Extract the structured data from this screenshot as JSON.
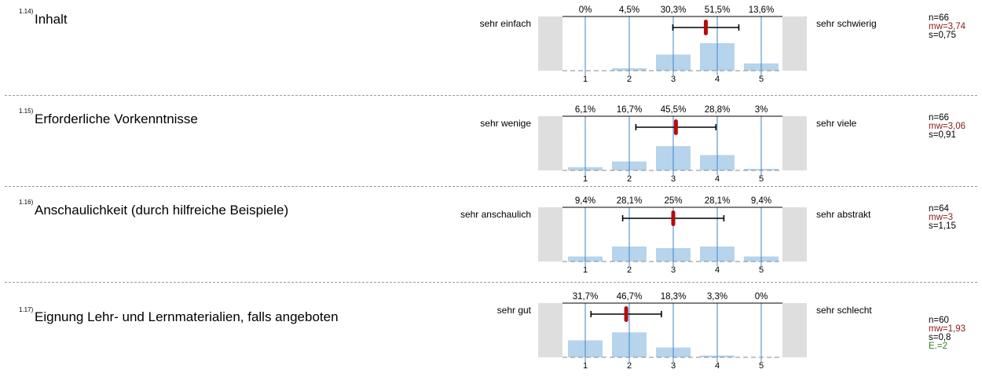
{
  "scale": {
    "ticks": [
      "1",
      "2",
      "3",
      "4",
      "5"
    ]
  },
  "colors": {
    "bar": "#b6d4ec",
    "gridline": "#3d86c8",
    "side_box": "#dedede",
    "mean_marker": "#b30d0d",
    "whisker": "#000000",
    "mw_text": "#8b1a1a",
    "e_text": "#2e7d1e"
  },
  "chart_data": [
    {
      "type": "bar",
      "num": "1.14)",
      "title": "Inhalt",
      "left_label": "sehr einfach",
      "right_label": "sehr schwierig",
      "categories": [
        "1",
        "2",
        "3",
        "4",
        "5"
      ],
      "values": [
        0,
        4.5,
        30.3,
        51.5,
        13.6
      ],
      "pct_labels": [
        "0%",
        "4,5%",
        "30,3%",
        "51,5%",
        "13,6%"
      ],
      "mean": 3.74,
      "sd": 0.75,
      "ylim": [
        0,
        100
      ],
      "stats": {
        "n": "n=66",
        "mw": "mw=3,74",
        "s": "s=0,75"
      }
    },
    {
      "type": "bar",
      "num": "1.15)",
      "title": "Erforderliche Vorkenntnisse",
      "left_label": "sehr wenige",
      "right_label": "sehr viele",
      "categories": [
        "1",
        "2",
        "3",
        "4",
        "5"
      ],
      "values": [
        6.1,
        16.7,
        45.5,
        28.8,
        3
      ],
      "pct_labels": [
        "6,1%",
        "16,7%",
        "45,5%",
        "28,8%",
        "3%"
      ],
      "mean": 3.06,
      "sd": 0.91,
      "ylim": [
        0,
        100
      ],
      "stats": {
        "n": "n=66",
        "mw": "mw=3,06",
        "s": "s=0,91"
      }
    },
    {
      "type": "bar",
      "num": "1.16)",
      "title": "Anschaulichkeit (durch hilfreiche Beispiele)",
      "left_label": "sehr anschaulich",
      "right_label": "sehr abstrakt",
      "categories": [
        "1",
        "2",
        "3",
        "4",
        "5"
      ],
      "values": [
        9.4,
        28.1,
        25,
        28.1,
        9.4
      ],
      "pct_labels": [
        "9,4%",
        "28,1%",
        "25%",
        "28,1%",
        "9,4%"
      ],
      "mean": 3,
      "sd": 1.15,
      "ylim": [
        0,
        100
      ],
      "stats": {
        "n": "n=64",
        "mw": "mw=3",
        "s": "s=1,15"
      }
    },
    {
      "type": "bar",
      "num": "1.17)",
      "title": "Eignung Lehr- und Lernmaterialien, falls angeboten",
      "left_label": "sehr gut",
      "right_label": "sehr schlecht",
      "categories": [
        "1",
        "2",
        "3",
        "4",
        "5"
      ],
      "values": [
        31.7,
        46.7,
        18.3,
        3.3,
        0
      ],
      "pct_labels": [
        "31,7%",
        "46,7%",
        "18,3%",
        "3,3%",
        "0%"
      ],
      "mean": 1.93,
      "sd": 0.8,
      "ylim": [
        0,
        100
      ],
      "stats": {
        "n": "n=60",
        "mw": "mw=1,93",
        "s": "s=0,8",
        "e": "E.=2"
      }
    }
  ]
}
